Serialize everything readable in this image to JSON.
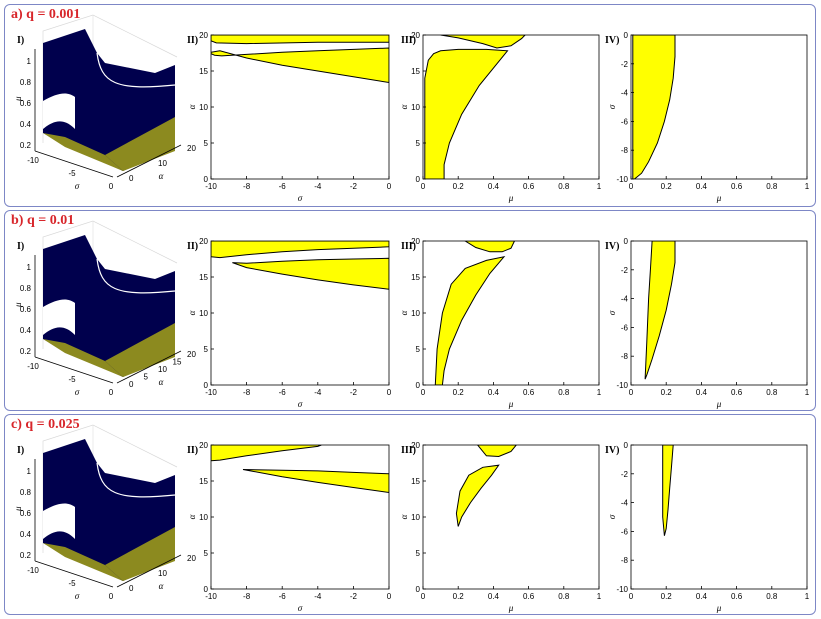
{
  "panels": [
    {
      "title": "a) q = 0.001"
    },
    {
      "title": "b) q = 0.01"
    },
    {
      "title": "c) q = 0.025"
    }
  ],
  "subplot_labels": [
    "I)",
    "II)",
    "III)",
    "IV)"
  ],
  "colors": {
    "region": "#ffff00",
    "surface": "#00004d",
    "surface_side": "#8c8a1f",
    "panel_border": "#7d87c6",
    "title": "#d8262b"
  },
  "chart_data": [
    {
      "panel": "a) q = 0.001",
      "subplots": [
        {
          "label": "I)",
          "type": "surface3d",
          "xlabel": "σ",
          "ylabel": "α",
          "zlabel": "μ",
          "xticks": [
            "-10",
            "-5",
            "0"
          ],
          "yticks": [
            "0",
            "10",
            "20"
          ],
          "zticks": [
            "0.2",
            "0.4",
            "0.6",
            "0.8",
            "1"
          ]
        },
        {
          "label": "II)",
          "type": "area",
          "xlabel": "σ",
          "ylabel": "α",
          "xlim": [
            -10,
            0
          ],
          "ylim": [
            0,
            20
          ],
          "xticks": [
            "-10",
            "-8",
            "-6",
            "-4",
            "-2",
            "0"
          ],
          "yticks": [
            "0",
            "5",
            "10",
            "15",
            "20"
          ],
          "regions": [
            {
              "x": [
                -10,
                -9.5,
                -8,
                -6,
                -4,
                -2,
                0,
                0,
                -2,
                -4,
                -6,
                -8,
                -9.4,
                -9.8,
                -10
              ],
              "y": [
                17.6,
                17.8,
                16.8,
                15.8,
                15.0,
                14.2,
                13.4,
                18.2,
                18.0,
                17.8,
                17.6,
                17.3,
                17.1,
                17.2,
                17.4
              ]
            },
            {
              "x": [
                -10,
                0,
                0,
                -4,
                -8,
                -9.7,
                -10
              ],
              "y": [
                20,
                20,
                19.0,
                19.0,
                18.8,
                18.9,
                19.2
              ]
            }
          ]
        },
        {
          "label": "III)",
          "type": "area",
          "xlabel": "μ",
          "ylabel": "α",
          "xlim": [
            0,
            1
          ],
          "ylim": [
            0,
            20
          ],
          "xticks": [
            "0",
            "0.2",
            "0.4",
            "0.6",
            "0.8",
            "1"
          ],
          "yticks": [
            "0",
            "5",
            "10",
            "15",
            "20"
          ],
          "regions": [
            {
              "x": [
                0.01,
                0.03,
                0.06,
                0.12,
                0.12,
                0.15,
                0.22,
                0.32,
                0.42,
                0.48,
                0.36,
                0.2,
                0.1,
                0.06,
                0.03,
                0.01
              ],
              "y": [
                0,
                0,
                0,
                0,
                2,
                5,
                9,
                13,
                16,
                17.8,
                18.0,
                18.0,
                17.8,
                17.4,
                16.5,
                14
              ]
            },
            {
              "x": [
                0.1,
                0.58,
                0.56,
                0.5,
                0.42,
                0.34,
                0.2,
                0.1
              ],
              "y": [
                20,
                20,
                19.5,
                18.5,
                18.2,
                18.8,
                19.6,
                20
              ]
            }
          ]
        },
        {
          "label": "IV)",
          "type": "area",
          "xlabel": "μ",
          "ylabel": "σ",
          "xlim": [
            0,
            1
          ],
          "ylim": [
            -10,
            0
          ],
          "xticks": [
            "0",
            "0.2",
            "0.4",
            "0.6",
            "0.8",
            "1"
          ],
          "yticks": [
            "-10",
            "-8",
            "-6",
            "-4",
            "-2",
            "0"
          ],
          "regions": [
            {
              "x": [
                0.01,
                0.25,
                0.25,
                0.24,
                0.22,
                0.19,
                0.15,
                0.1,
                0.06,
                0.02,
                0.01
              ],
              "y": [
                0,
                0,
                -1.5,
                -3,
                -4.5,
                -6,
                -7.5,
                -8.8,
                -9.6,
                -10,
                -10
              ]
            }
          ]
        }
      ]
    },
    {
      "panel": "b) q = 0.01",
      "subplots": [
        {
          "label": "I)",
          "type": "surface3d",
          "xlabel": "σ",
          "ylabel": "α",
          "zlabel": "μ",
          "xticks": [
            "-10",
            "-5",
            "0"
          ],
          "yticks": [
            "0",
            "5",
            "10",
            "15",
            "20"
          ],
          "zticks": [
            "0.2",
            "0.4",
            "0.6",
            "0.8",
            "1"
          ]
        },
        {
          "label": "II)",
          "type": "area",
          "xlabel": "σ",
          "ylabel": "α",
          "xlim": [
            -10,
            0
          ],
          "ylim": [
            0,
            20
          ],
          "xticks": [
            "-10",
            "-8",
            "-6",
            "-4",
            "-2",
            "0"
          ],
          "yticks": [
            "0",
            "5",
            "10",
            "15",
            "20"
          ],
          "regions": [
            {
              "x": [
                -8.8,
                -8,
                -6,
                -4,
                -2,
                0,
                0,
                -2,
                -4,
                -6,
                -8,
                -8.8
              ],
              "y": [
                17.0,
                16.3,
                15.4,
                14.6,
                13.9,
                13.3,
                17.6,
                17.5,
                17.4,
                17.2,
                16.9,
                17.0
              ]
            },
            {
              "x": [
                -10,
                -4,
                0,
                0,
                -2,
                -4,
                -6,
                -8,
                -9.5,
                -10
              ],
              "y": [
                20,
                20,
                20,
                19.2,
                19.0,
                18.8,
                18.5,
                18.1,
                17.7,
                17.8
              ]
            }
          ]
        },
        {
          "label": "III)",
          "type": "area",
          "xlabel": "μ",
          "ylabel": "α",
          "xlim": [
            0,
            1
          ],
          "ylim": [
            0,
            20
          ],
          "xticks": [
            "0",
            "0.2",
            "0.4",
            "0.6",
            "0.8",
            "1"
          ],
          "yticks": [
            "0",
            "5",
            "10",
            "15",
            "20"
          ],
          "regions": [
            {
              "x": [
                0.07,
                0.11,
                0.12,
                0.15,
                0.22,
                0.3,
                0.38,
                0.46,
                0.36,
                0.24,
                0.16,
                0.11,
                0.08,
                0.07
              ],
              "y": [
                0,
                0,
                2,
                5,
                9,
                12.5,
                15.5,
                17.8,
                17.3,
                16.2,
                14,
                10,
                5,
                0
              ]
            },
            {
              "x": [
                0.24,
                0.52,
                0.5,
                0.45,
                0.38,
                0.3,
                0.24
              ],
              "y": [
                20,
                20,
                19.0,
                18.5,
                18.5,
                19.1,
                20
              ]
            }
          ]
        },
        {
          "label": "IV)",
          "type": "area",
          "xlabel": "μ",
          "ylabel": "σ",
          "xlim": [
            0,
            1
          ],
          "ylim": [
            -10,
            0
          ],
          "xticks": [
            "0",
            "0.2",
            "0.4",
            "0.6",
            "0.8",
            "1"
          ],
          "yticks": [
            "-10",
            "-8",
            "-6",
            "-4",
            "-2",
            "0"
          ],
          "regions": [
            {
              "x": [
                0.12,
                0.25,
                0.25,
                0.23,
                0.2,
                0.16,
                0.12,
                0.09,
                0.08,
                0.09,
                0.1,
                0.11,
                0.12
              ],
              "y": [
                0,
                0,
                -1.5,
                -3,
                -4.8,
                -6.6,
                -8.2,
                -9.3,
                -9.6,
                -7,
                -4,
                -2,
                0
              ]
            }
          ]
        }
      ]
    },
    {
      "panel": "c) q = 0.025",
      "subplots": [
        {
          "label": "I)",
          "type": "surface3d",
          "xlabel": "σ",
          "ylabel": "α",
          "zlabel": "μ",
          "xticks": [
            "-10",
            "-5",
            "0"
          ],
          "yticks": [
            "0",
            "10",
            "20"
          ],
          "zticks": [
            "0.2",
            "0.4",
            "0.6",
            "0.8",
            "1"
          ]
        },
        {
          "label": "II)",
          "type": "area",
          "xlabel": "σ",
          "ylabel": "α",
          "xlim": [
            -10,
            0
          ],
          "ylim": [
            0,
            20
          ],
          "xticks": [
            "-10",
            "-8",
            "-6",
            "-4",
            "-2",
            "0"
          ],
          "yticks": [
            "0",
            "5",
            "10",
            "15",
            "20"
          ],
          "regions": [
            {
              "x": [
                -8.2,
                -6,
                -4,
                -2,
                0,
                0,
                -2,
                -4,
                -6,
                -8.2
              ],
              "y": [
                16.6,
                15.6,
                14.8,
                14.1,
                13.4,
                16.0,
                16.2,
                16.4,
                16.5,
                16.6
              ]
            },
            {
              "x": [
                -10,
                -3.8,
                -4,
                -6,
                -8,
                -9.5,
                -10
              ],
              "y": [
                20,
                20,
                19.8,
                19.2,
                18.5,
                17.9,
                17.8
              ]
            }
          ]
        },
        {
          "label": "III)",
          "type": "area",
          "xlabel": "μ",
          "ylabel": "α",
          "xlim": [
            0,
            1
          ],
          "ylim": [
            0,
            20
          ],
          "xticks": [
            "0",
            "0.2",
            "0.4",
            "0.6",
            "0.8",
            "1"
          ],
          "yticks": [
            "0",
            "5",
            "10",
            "15",
            "20"
          ],
          "regions": [
            {
              "x": [
                0.2,
                0.22,
                0.27,
                0.33,
                0.39,
                0.43,
                0.34,
                0.26,
                0.21,
                0.19,
                0.2
              ],
              "y": [
                8.7,
                10,
                12,
                14,
                15.8,
                17.2,
                16.9,
                15.8,
                13.6,
                10.5,
                8.7
              ]
            },
            {
              "x": [
                0.31,
                0.53,
                0.5,
                0.43,
                0.36,
                0.31
              ],
              "y": [
                20,
                20,
                19.1,
                18.4,
                18.5,
                20
              ]
            }
          ]
        },
        {
          "label": "IV)",
          "type": "area",
          "xlabel": "μ",
          "ylabel": "σ",
          "xlim": [
            0,
            1
          ],
          "ylim": [
            -10,
            0
          ],
          "xticks": [
            "0",
            "0.2",
            "0.4",
            "0.6",
            "0.8",
            "1"
          ],
          "yticks": [
            "-10",
            "-8",
            "-6",
            "-4",
            "-2",
            "0"
          ],
          "regions": [
            {
              "x": [
                0.18,
                0.24,
                0.23,
                0.22,
                0.21,
                0.2,
                0.19,
                0.18,
                0.18
              ],
              "y": [
                0,
                0,
                -1.5,
                -3,
                -4.5,
                -5.8,
                -6.3,
                -5,
                0
              ]
            }
          ]
        }
      ]
    }
  ]
}
